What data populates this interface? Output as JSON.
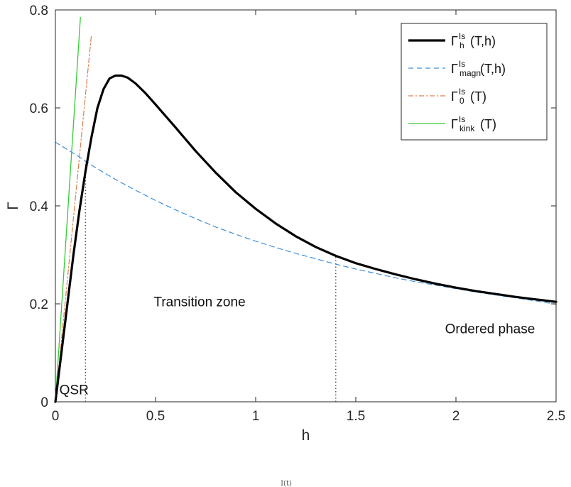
{
  "chart_data": {
    "type": "line",
    "title": "",
    "xlabel": "h",
    "ylabel": "Γ",
    "xlim": [
      0,
      2.5
    ],
    "ylim": [
      0,
      0.8
    ],
    "xticks": [
      {
        "value": 0,
        "label": "0"
      },
      {
        "value": 0.5,
        "label": "0.5"
      },
      {
        "value": 1,
        "label": "1"
      },
      {
        "value": 1.5,
        "label": "1.5"
      },
      {
        "value": 2,
        "label": "2"
      },
      {
        "value": 2.5,
        "label": "2.5"
      }
    ],
    "yticks": [
      {
        "value": 0,
        "label": "0"
      },
      {
        "value": 0.2,
        "label": "0.2"
      },
      {
        "value": 0.4,
        "label": "0.4"
      },
      {
        "value": 0.6,
        "label": "0.6"
      },
      {
        "value": 0.8,
        "label": "0.8"
      }
    ],
    "grid": false,
    "legend_position": "top-right",
    "series": [
      {
        "name": "Γ_h^Is(T,h)",
        "legend": {
          "base": "Γ",
          "sub": "h",
          "sup": "Is",
          "arg": "(T,h)"
        },
        "color": "#000000",
        "style": "solid",
        "x": [
          0,
          0.03,
          0.06,
          0.09,
          0.12,
          0.15,
          0.18,
          0.21,
          0.24,
          0.27,
          0.3,
          0.33,
          0.36,
          0.4,
          0.45,
          0.5,
          0.6,
          0.7,
          0.8,
          0.9,
          1.0,
          1.1,
          1.2,
          1.3,
          1.4,
          1.5,
          1.6,
          1.7,
          1.8,
          1.9,
          2.0,
          2.1,
          2.2,
          2.3,
          2.4,
          2.5
        ],
        "y": [
          0,
          0.1,
          0.2,
          0.3,
          0.39,
          0.47,
          0.54,
          0.6,
          0.638,
          0.66,
          0.666,
          0.666,
          0.662,
          0.65,
          0.63,
          0.607,
          0.56,
          0.512,
          0.468,
          0.428,
          0.394,
          0.364,
          0.338,
          0.316,
          0.298,
          0.283,
          0.271,
          0.26,
          0.25,
          0.241,
          0.233,
          0.226,
          0.22,
          0.214,
          0.209,
          0.204
        ]
      },
      {
        "name": "Γ_magn^Is(T,h)",
        "legend": {
          "base": "Γ",
          "sub": "magn",
          "sup": "Is",
          "arg": "(T,h)"
        },
        "color": "#3d8fd6",
        "style": "dashed",
        "x": [
          0,
          0.1,
          0.2,
          0.3,
          0.4,
          0.5,
          0.6,
          0.7,
          0.8,
          0.9,
          1.0,
          1.1,
          1.2,
          1.3,
          1.4,
          1.5,
          1.6,
          1.7,
          1.8,
          1.9,
          2.0,
          2.1,
          2.2,
          2.3,
          2.4,
          2.5
        ],
        "y": [
          0.53,
          0.505,
          0.478,
          0.454,
          0.432,
          0.411,
          0.392,
          0.374,
          0.357,
          0.342,
          0.328,
          0.315,
          0.303,
          0.292,
          0.281,
          0.271,
          0.262,
          0.253,
          0.245,
          0.238,
          0.231,
          0.224,
          0.218,
          0.212,
          0.206,
          0.199
        ]
      },
      {
        "name": "Γ_0^Is(T)",
        "legend": {
          "base": "Γ",
          "sub": "0",
          "sup": "Is",
          "arg": "(T)"
        },
        "color": "#d9804f",
        "style": "dashdot",
        "x": [
          0,
          0.18
        ],
        "y": [
          0,
          0.75
        ]
      },
      {
        "name": "Γ_kink^Is(T)",
        "legend": {
          "base": "Γ",
          "sub": "kink",
          "sup": "Is",
          "arg": "(T)"
        },
        "color": "#33cc33",
        "style": "solid",
        "x": [
          0,
          0.125
        ],
        "y": [
          0,
          0.785
        ]
      }
    ],
    "vlines": [
      {
        "x": 0.15,
        "y": [
          0,
          0.49
        ],
        "style": "dotted",
        "color": "#333333"
      },
      {
        "x": 1.4,
        "y": [
          0,
          0.298
        ],
        "style": "dotted",
        "color": "#333333"
      }
    ],
    "annotations": [
      {
        "text": "QSR",
        "x": 0.02,
        "y": 0.015
      },
      {
        "text": "Transition zone",
        "x": 0.72,
        "y": 0.195
      },
      {
        "text": "Ordered phase",
        "x": 2.17,
        "y": 0.14
      }
    ]
  },
  "footer_fragment": "I(t)"
}
